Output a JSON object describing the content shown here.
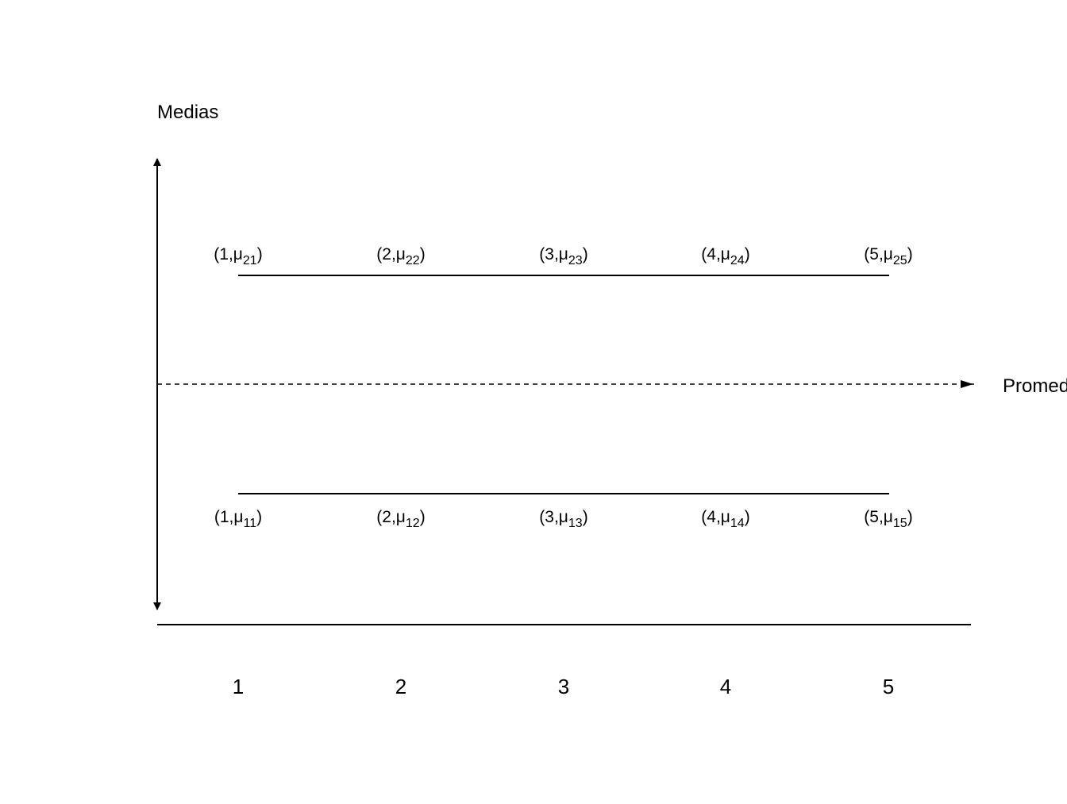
{
  "y_axis_label": "Medias",
  "x_axis_label": "Promedio",
  "x_ticks": [
    "1",
    "2",
    "3",
    "4",
    "5"
  ],
  "upper_series": {
    "labels": [
      {
        "prefix": "(1,",
        "mu": "μ",
        "sub": "21",
        "close": ")"
      },
      {
        "prefix": "(2,",
        "mu": "μ",
        "sub": "22",
        "close": ")"
      },
      {
        "prefix": "(3,",
        "mu": "μ",
        "sub": "23",
        "close": ")"
      },
      {
        "prefix": "(4,",
        "mu": "μ",
        "sub": "24",
        "close": ")"
      },
      {
        "prefix": "(5,",
        "mu": "μ",
        "sub": "25",
        "close": ")"
      }
    ]
  },
  "lower_series": {
    "labels": [
      {
        "prefix": "(1,",
        "mu": "μ",
        "sub": "11",
        "close": ")"
      },
      {
        "prefix": "(2,",
        "mu": "μ",
        "sub": "12",
        "close": ")"
      },
      {
        "prefix": "(3,",
        "mu": "μ",
        "sub": "13",
        "close": ")"
      },
      {
        "prefix": "(4,",
        "mu": "μ",
        "sub": "14",
        "close": ")"
      },
      {
        "prefix": "(5,",
        "mu": "μ",
        "sub": "15",
        "close": ")"
      }
    ]
  },
  "colors": {
    "line": "#000000",
    "background": "#ffffff"
  }
}
